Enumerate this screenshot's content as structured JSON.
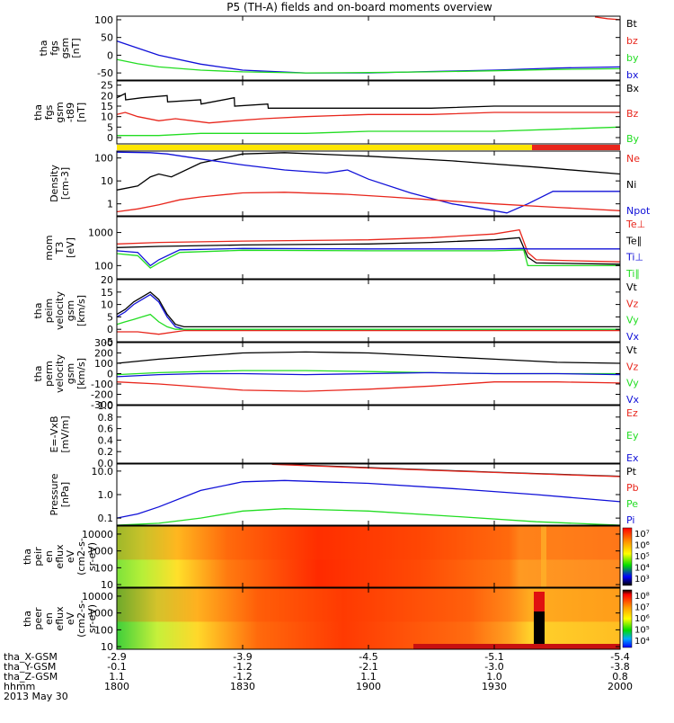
{
  "title": "P5 (TH-A) fields and on-board moments overview",
  "date_label": "2013 May 30",
  "x_axis": {
    "row_labels": [
      "tha_X-GSM",
      "tha_Y-GSM",
      "tha_Z-GSM",
      "hhmm"
    ],
    "ticks": [
      {
        "t": 0,
        "x": "-2.9",
        "y": "-0.1",
        "z": "1.1",
        "hhmm": "1800"
      },
      {
        "t": 30,
        "x": "-3.9",
        "y": "-1.2",
        "z": "-1.2",
        "hhmm": "1830"
      },
      {
        "t": 60,
        "x": "-4.5",
        "y": "-2.1",
        "z": "1.1",
        "hhmm": "1900"
      },
      {
        "t": 90,
        "x": "-5.1",
        "y": "-3.0",
        "z": "1.0",
        "hhmm": "1930"
      },
      {
        "t": 120,
        "x": "-5.4",
        "y": "-3.8",
        "z": "0.8",
        "hhmm": "2000"
      }
    ]
  },
  "colors": {
    "black": "#000000",
    "red": "#e8261c",
    "green": "#22dd22",
    "blue": "#1010d8",
    "yellow": "#ffe600"
  },
  "chart_data": [
    {
      "id": "fgs",
      "type": "line",
      "ylabel": [
        "tha",
        "fgs",
        "gsm",
        "[nT]"
      ],
      "ylim": [
        -70,
        110
      ],
      "ticks": [
        "100",
        "50",
        "0",
        "-50"
      ],
      "tick_values": [
        100,
        50,
        0,
        -50
      ],
      "legend": [
        {
          "name": "Bt",
          "color": "black"
        },
        {
          "name": "bz",
          "color": "red"
        },
        {
          "name": "by",
          "color": "green"
        },
        {
          "name": "bx",
          "color": "blue"
        }
      ],
      "series": [
        {
          "name": "bx",
          "color": "blue",
          "t": [
            0,
            5,
            10,
            20,
            30,
            45,
            60,
            75,
            90,
            105,
            120
          ],
          "v": [
            40,
            20,
            0,
            -25,
            -42,
            -50,
            -50,
            -46,
            -42,
            -36,
            -33
          ]
        },
        {
          "name": "by",
          "color": "green",
          "t": [
            0,
            5,
            10,
            20,
            30,
            45,
            60,
            75,
            90,
            105,
            120
          ],
          "v": [
            -12,
            -24,
            -33,
            -42,
            -47,
            -50,
            -49,
            -47,
            -44,
            -40,
            -38
          ]
        },
        {
          "name": "bz",
          "color": "red",
          "t": [
            114,
            117,
            120
          ],
          "v": [
            108,
            103,
            100
          ]
        }
      ]
    },
    {
      "id": "fgs_t89",
      "type": "line",
      "ylabel": [
        "tha",
        "fgs",
        "gsm",
        "-t89",
        "[nT]"
      ],
      "ylim": [
        -3,
        27
      ],
      "ticks": [
        "25",
        "20",
        "15",
        "10",
        "5",
        "0"
      ],
      "tick_values": [
        25,
        20,
        15,
        10,
        5,
        0
      ],
      "legend": [
        {
          "name": "Bx",
          "color": "black"
        },
        {
          "name": "Bz",
          "color": "red"
        },
        {
          "name": "By",
          "color": "green"
        }
      ],
      "series": [
        {
          "name": "Bx",
          "color": "black",
          "t": [
            0,
            2,
            2.1,
            6,
            12,
            12.1,
            20,
            20.1,
            28,
            28.1,
            36,
            36.1,
            45,
            60,
            75,
            90,
            105,
            120
          ],
          "v": [
            19,
            21,
            18,
            19,
            20,
            17,
            18,
            16,
            19,
            15,
            16,
            14,
            14,
            14,
            14,
            15,
            15,
            15
          ]
        },
        {
          "name": "Bz",
          "color": "red",
          "t": [
            0,
            2,
            5,
            10,
            14,
            18,
            22,
            28,
            35,
            45,
            60,
            75,
            90,
            105,
            120
          ],
          "v": [
            11,
            12,
            10,
            8,
            9,
            8,
            7,
            8,
            9,
            10,
            11,
            11,
            12,
            12,
            12
          ]
        },
        {
          "name": "By",
          "color": "green",
          "t": [
            0,
            10,
            20,
            30,
            45,
            60,
            75,
            90,
            105,
            120
          ],
          "v": [
            1,
            1,
            2,
            2,
            2,
            3,
            3,
            3,
            4,
            5
          ]
        }
      ]
    },
    {
      "id": "density",
      "type": "line",
      "scale": "log",
      "ylabel": [
        "Density",
        "[cm-3]"
      ],
      "ylim": [
        0.3,
        200
      ],
      "ticks": [
        "100",
        "10",
        "1"
      ],
      "tick_values": [
        100,
        10,
        1
      ],
      "legend": [
        {
          "name": "Ne",
          "color": "red"
        },
        {
          "name": "Ni",
          "color": "black"
        },
        {
          "name": "Npot",
          "color": "blue"
        }
      ],
      "series": [
        {
          "name": "Ni",
          "color": "black",
          "t": [
            0,
            5,
            8,
            10,
            13,
            20,
            30,
            40,
            60,
            80,
            100,
            120
          ],
          "v": [
            4,
            6,
            15,
            20,
            15,
            60,
            150,
            170,
            120,
            75,
            40,
            20
          ]
        },
        {
          "name": "Npot",
          "color": "blue",
          "t": [
            0,
            8,
            12,
            20,
            30,
            40,
            50,
            55,
            60,
            70,
            80,
            90,
            93,
            98,
            104,
            120
          ],
          "v": [
            180,
            170,
            150,
            90,
            50,
            30,
            22,
            30,
            12,
            3,
            1,
            0.5,
            0.4,
            1,
            3.5,
            3.5
          ]
        },
        {
          "name": "Ne",
          "color": "red",
          "t": [
            0,
            5,
            10,
            15,
            20,
            30,
            40,
            55,
            65,
            75,
            90,
            105,
            120
          ],
          "v": [
            0.45,
            0.6,
            0.9,
            1.5,
            2,
            3,
            3.2,
            2.6,
            2,
            1.5,
            1,
            0.7,
            0.5
          ]
        }
      ]
    },
    {
      "id": "temps",
      "type": "line",
      "scale": "log",
      "ylabel": [
        "mom",
        "T3",
        "[eV]"
      ],
      "ylim": [
        40,
        3000
      ],
      "ticks": [
        "1000",
        "100"
      ],
      "tick_values": [
        1000,
        100
      ],
      "legend": [
        {
          "name": "Te⊥",
          "color": "red"
        },
        {
          "name": "Te∥",
          "color": "black"
        },
        {
          "name": "Ti⊥",
          "color": "blue"
        },
        {
          "name": "Ti∥",
          "color": "green"
        }
      ],
      "series": [
        {
          "name": "Te⊥",
          "color": "red",
          "t": [
            0,
            10,
            30,
            60,
            75,
            90,
            96,
            98,
            100,
            120
          ],
          "v": [
            450,
            500,
            550,
            600,
            700,
            900,
            1200,
            250,
            150,
            130
          ]
        },
        {
          "name": "Te∥",
          "color": "black",
          "t": [
            0,
            10,
            30,
            60,
            75,
            90,
            96,
            98,
            100,
            120
          ],
          "v": [
            350,
            380,
            420,
            450,
            500,
            600,
            700,
            180,
            120,
            110
          ]
        },
        {
          "name": "Ti⊥",
          "color": "blue",
          "t": [
            0,
            5,
            8,
            10,
            15,
            30,
            60,
            90,
            97,
            98,
            120
          ],
          "v": [
            280,
            250,
            100,
            150,
            300,
            330,
            320,
            320,
            330,
            320,
            320
          ]
        },
        {
          "name": "Ti∥",
          "color": "green",
          "t": [
            0,
            5,
            8,
            10,
            15,
            30,
            60,
            90,
            97,
            98,
            120
          ],
          "v": [
            230,
            200,
            85,
            120,
            250,
            290,
            280,
            280,
            300,
            100,
            100
          ]
        }
      ]
    },
    {
      "id": "velocity_perp",
      "type": "line",
      "ylabel": [
        "tha",
        "peim",
        "velocity",
        "gsm",
        "[km/s]"
      ],
      "ylim": [
        -5,
        20
      ],
      "ticks": [
        "20",
        "15",
        "10",
        "5",
        "0",
        "-5"
      ],
      "tick_values": [
        20,
        15,
        10,
        5,
        0,
        -5
      ],
      "legend": [
        {
          "name": "Vt",
          "color": "black"
        },
        {
          "name": "Vz",
          "color": "red"
        },
        {
          "name": "Vy",
          "color": "green"
        },
        {
          "name": "Vx",
          "color": "blue"
        }
      ],
      "series": [
        {
          "name": "Vt",
          "color": "black",
          "t": [
            0,
            2,
            4,
            6,
            8,
            10,
            12,
            14,
            16,
            120
          ],
          "v": [
            6,
            8,
            11,
            13,
            15,
            12,
            6,
            2,
            1,
            1
          ]
        },
        {
          "name": "Vx",
          "color": "blue",
          "t": [
            0,
            2,
            4,
            6,
            8,
            10,
            12,
            14,
            16,
            120
          ],
          "v": [
            5,
            7,
            10,
            12,
            14,
            11,
            5,
            1,
            0,
            0
          ]
        },
        {
          "name": "Vy",
          "color": "green",
          "t": [
            0,
            2,
            4,
            6,
            8,
            10,
            12,
            14,
            16,
            120
          ],
          "v": [
            2,
            3,
            4,
            5,
            6,
            3,
            1,
            0,
            0,
            0
          ]
        },
        {
          "name": "Vz",
          "color": "red",
          "t": [
            0,
            5,
            10,
            16,
            120
          ],
          "v": [
            -1,
            -1,
            -2,
            -0.5,
            -0.5
          ]
        }
      ]
    },
    {
      "id": "velocity_perm",
      "type": "line",
      "ylabel": [
        "tha",
        "perm",
        "velocity",
        "gsm",
        "[km/s]"
      ],
      "ylim": [
        -300,
        300
      ],
      "ticks": [
        "300",
        "200",
        "100",
        "0",
        "-100",
        "-200",
        "-300"
      ],
      "tick_values": [
        300,
        200,
        100,
        0,
        -100,
        -200,
        -300
      ],
      "legend": [
        {
          "name": "Vt",
          "color": "black"
        },
        {
          "name": "Vz",
          "color": "red"
        },
        {
          "name": "Vy",
          "color": "green"
        },
        {
          "name": "Vx",
          "color": "blue"
        }
      ],
      "series": [
        {
          "name": "Vt",
          "color": "black",
          "t": [
            0,
            10,
            20,
            30,
            45,
            60,
            75,
            90,
            105,
            120
          ],
          "v": [
            100,
            140,
            170,
            200,
            210,
            200,
            170,
            140,
            110,
            100
          ]
        },
        {
          "name": "Vy",
          "color": "green",
          "t": [
            0,
            10,
            20,
            30,
            45,
            60,
            75,
            90,
            105,
            120
          ],
          "v": [
            -10,
            10,
            20,
            30,
            30,
            20,
            10,
            0,
            0,
            0
          ]
        },
        {
          "name": "Vx",
          "color": "blue",
          "t": [
            0,
            10,
            20,
            30,
            45,
            60,
            75,
            90,
            105,
            120
          ],
          "v": [
            -30,
            -10,
            0,
            0,
            -10,
            0,
            10,
            0,
            0,
            -10
          ]
        },
        {
          "name": "Vz",
          "color": "red",
          "t": [
            0,
            10,
            20,
            30,
            45,
            60,
            75,
            90,
            105,
            120
          ],
          "v": [
            -80,
            -100,
            -130,
            -160,
            -170,
            -150,
            -120,
            -80,
            -80,
            -90
          ]
        }
      ]
    },
    {
      "id": "efield",
      "type": "line",
      "ylabel": [
        "E=-VxB",
        "[mV/m]"
      ],
      "ylim": [
        0,
        1
      ],
      "ticks": [
        "1.0",
        "0.8",
        "0.6",
        "0.4",
        "0.2",
        "0.0"
      ],
      "tick_values": [
        1.0,
        0.8,
        0.6,
        0.4,
        0.2,
        0.0
      ],
      "legend": [
        {
          "name": "Ez",
          "color": "red"
        },
        {
          "name": "Ey",
          "color": "green"
        },
        {
          "name": "Ex",
          "color": "blue"
        }
      ],
      "series": []
    },
    {
      "id": "pressure",
      "type": "line",
      "scale": "log",
      "ylabel": [
        "Pressure",
        "[nPa]"
      ],
      "ylim": [
        0.05,
        20
      ],
      "ticks": [
        "10.0",
        "1.0",
        "0.1"
      ],
      "tick_values": [
        10,
        1,
        0.1
      ],
      "legend": [
        {
          "name": "Pt",
          "color": "black"
        },
        {
          "name": "Pb",
          "color": "red"
        },
        {
          "name": "Pe",
          "color": "green"
        },
        {
          "name": "Pi",
          "color": "blue"
        }
      ],
      "series": [
        {
          "name": "Pt",
          "color": "black",
          "t": [
            37,
            60,
            90,
            120
          ],
          "v": [
            20,
            14,
            9,
            6
          ]
        },
        {
          "name": "Pb",
          "color": "red",
          "t": [
            37,
            60,
            90,
            120
          ],
          "v": [
            19.5,
            13.5,
            8.7,
            5.8
          ]
        },
        {
          "name": "Pi",
          "color": "blue",
          "t": [
            0,
            5,
            10,
            20,
            30,
            40,
            60,
            80,
            100,
            120
          ],
          "v": [
            0.1,
            0.15,
            0.3,
            1.5,
            3.5,
            4,
            3,
            1.8,
            1,
            0.5
          ]
        },
        {
          "name": "Pe",
          "color": "green",
          "t": [
            0,
            10,
            20,
            30,
            40,
            60,
            80,
            100,
            120
          ],
          "v": [
            0.05,
            0.06,
            0.1,
            0.2,
            0.25,
            0.2,
            0.12,
            0.07,
            0.05
          ]
        }
      ]
    },
    {
      "id": "peir_spec",
      "type": "heatmap",
      "ylabel": [
        "tha",
        "peir",
        "en",
        "eflux",
        "eV",
        "(cm2-s-",
        "sr-eV)"
      ],
      "ylim": [
        7,
        30000
      ],
      "ticks": [
        "10000",
        "1000",
        "100",
        "10"
      ],
      "tick_values": [
        10000,
        1000,
        100,
        10
      ],
      "colorbar": {
        "ticks": [
          "10⁷",
          "10⁶",
          "10⁵",
          "10⁴",
          "10³"
        ]
      }
    },
    {
      "id": "peer_spec",
      "type": "heatmap",
      "ylabel": [
        "tha",
        "peer",
        "en",
        "eflux",
        "eV",
        "(cm2-s-",
        "sr-eV)"
      ],
      "ylim": [
        7,
        30000
      ],
      "ticks": [
        "10000",
        "1000",
        "100",
        "10"
      ],
      "tick_values": [
        10000,
        1000,
        100,
        10
      ],
      "colorbar": {
        "ticks": [
          "10⁸",
          "10⁷",
          "10⁶",
          "10⁵",
          "10⁴"
        ]
      }
    }
  ]
}
